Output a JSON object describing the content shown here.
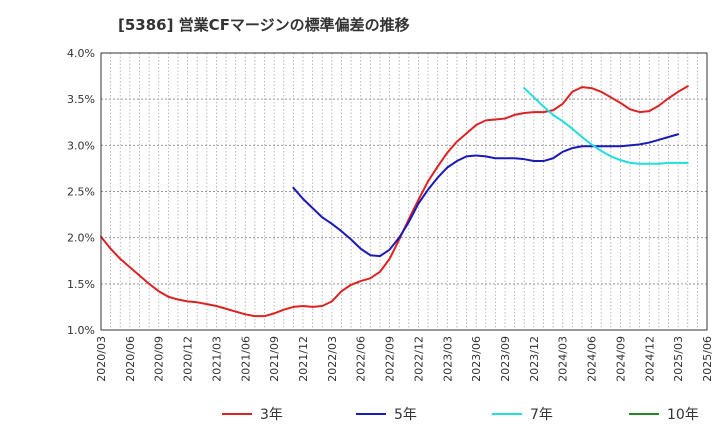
{
  "title": "[5386]  営業CFマージンの標準偏差の推移",
  "chart_data": {
    "type": "line",
    "title": "[5386]  営業CFマージンの標準偏差の推移",
    "xlabel": "",
    "ylabel": "",
    "ylim": [
      1.0,
      4.0
    ],
    "y_ticks": [
      "1.0%",
      "1.5%",
      "2.0%",
      "2.5%",
      "3.0%",
      "3.5%",
      "4.0%"
    ],
    "x_ticks": [
      "2020/03",
      "2020/06",
      "2020/09",
      "2020/12",
      "2021/03",
      "2021/06",
      "2021/09",
      "2021/12",
      "2022/03",
      "2022/06",
      "2022/09",
      "2022/12",
      "2023/03",
      "2023/06",
      "2023/09",
      "2023/12",
      "2024/03",
      "2024/06",
      "2024/09",
      "2024/12",
      "2025/03",
      "2025/06"
    ],
    "grid": true,
    "legend_position": "bottom",
    "series": [
      {
        "name": "3年",
        "color": "#dd2222",
        "start": "2020/03",
        "values": [
          2.01,
          1.88,
          1.77,
          1.68,
          1.59,
          1.5,
          1.42,
          1.36,
          1.33,
          1.31,
          1.3,
          1.28,
          1.26,
          1.23,
          1.2,
          1.17,
          1.15,
          1.15,
          1.18,
          1.22,
          1.25,
          1.26,
          1.25,
          1.26,
          1.31,
          1.42,
          1.49,
          1.53,
          1.56,
          1.63,
          1.77,
          1.98,
          2.2,
          2.41,
          2.61,
          2.77,
          2.92,
          3.04,
          3.13,
          3.22,
          3.27,
          3.28,
          3.29,
          3.33,
          3.35,
          3.36,
          3.36,
          3.38,
          3.45,
          3.58,
          3.63,
          3.62,
          3.58,
          3.52,
          3.46,
          3.39,
          3.36,
          3.37,
          3.43,
          3.51,
          3.58,
          3.64
        ]
      },
      {
        "name": "5年",
        "color": "#1a1ab8",
        "start": "2021/11",
        "values": [
          2.54,
          2.42,
          2.32,
          2.22,
          2.15,
          2.07,
          1.98,
          1.88,
          1.81,
          1.8,
          1.87,
          2.0,
          2.17,
          2.37,
          2.52,
          2.65,
          2.76,
          2.83,
          2.88,
          2.89,
          2.88,
          2.86,
          2.86,
          2.86,
          2.85,
          2.83,
          2.83,
          2.86,
          2.93,
          2.97,
          2.99,
          2.99,
          2.99,
          2.99,
          2.99,
          3.0,
          3.01,
          3.03,
          3.06,
          3.09,
          3.12
        ]
      },
      {
        "name": "7年",
        "color": "#22dddd",
        "start": "2023/11",
        "values": [
          3.62,
          3.52,
          3.42,
          3.33,
          3.26,
          3.18,
          3.09,
          3.01,
          2.94,
          2.88,
          2.84,
          2.81,
          2.8,
          2.8,
          2.8,
          2.81,
          2.81,
          2.81
        ]
      },
      {
        "name": "10年",
        "color": "#228822",
        "start": "",
        "values": []
      }
    ]
  }
}
